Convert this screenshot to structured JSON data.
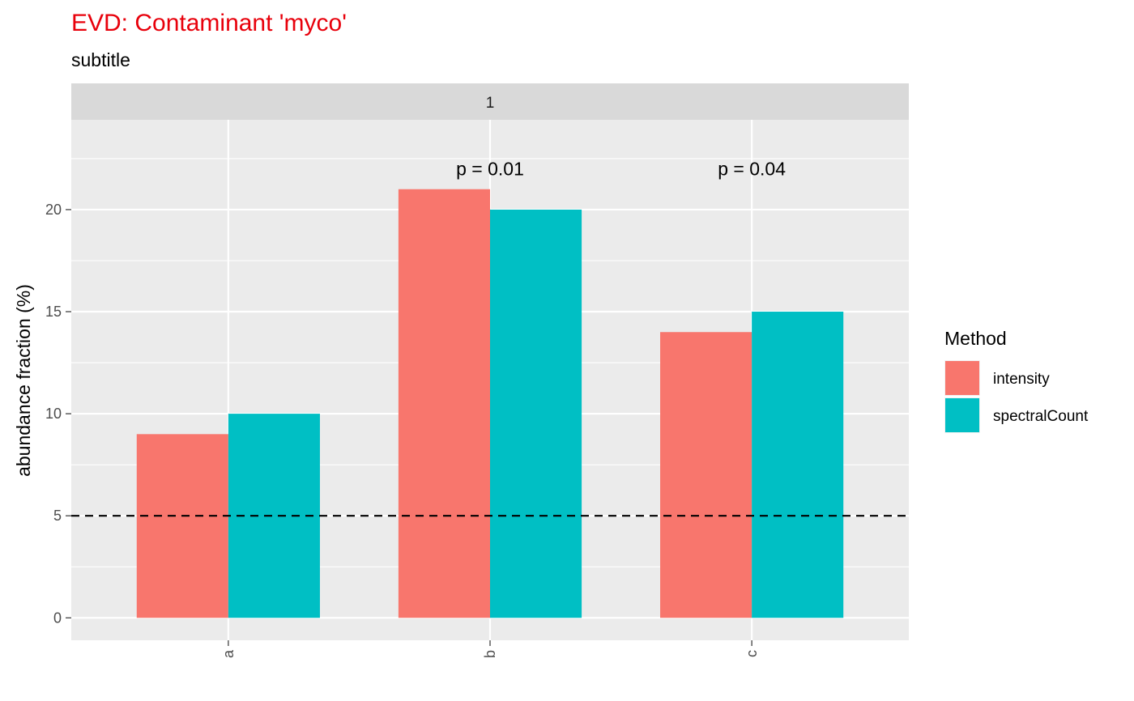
{
  "chart_data": {
    "type": "bar",
    "title": "EVD: Contaminant 'myco'",
    "subtitle": "subtitle",
    "facet_label": "1",
    "xlabel": "",
    "ylabel": "abundance fraction (%)",
    "categories": [
      "a",
      "b",
      "c"
    ],
    "series": [
      {
        "name": "intensity",
        "values": [
          9,
          21,
          14
        ],
        "color": "#F8766D"
      },
      {
        "name": "spectralCount",
        "values": [
          10,
          20,
          15
        ],
        "color": "#00BFC4"
      }
    ],
    "ylim": [
      -1.1,
      24.4
    ],
    "yticks": [
      0,
      5,
      10,
      15,
      20
    ],
    "ytick_labels": [
      "0",
      "5",
      "10",
      "15",
      "20"
    ],
    "threshold": 5,
    "annotations": [
      {
        "category": "b",
        "y": 22,
        "text": "p = 0.01"
      },
      {
        "category": "c",
        "y": 22,
        "text": "p = 0.04"
      }
    ],
    "legend": {
      "title": "Method",
      "position": "right"
    },
    "grid": true,
    "colors": {
      "title": "#E8000B",
      "panel": "#EBEBEB",
      "strip": "#D9D9D9",
      "grid": "#FFFFFF",
      "axis_text": "#4D4D4D"
    }
  }
}
